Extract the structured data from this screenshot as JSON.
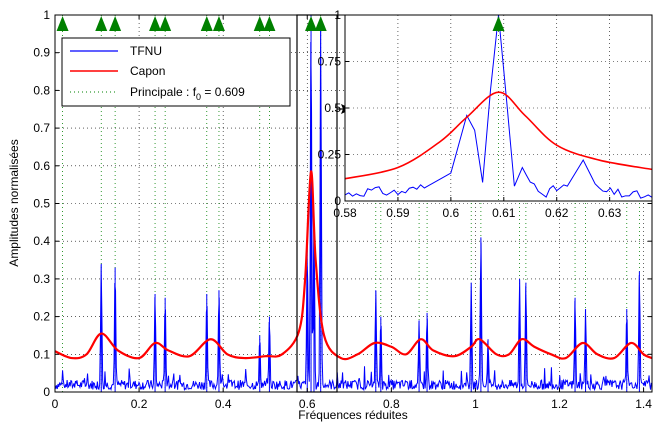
{
  "chart_data": [
    {
      "type": "line",
      "xlabel": "Fréquences réduites",
      "ylabel": "Amplitudes normalisées",
      "xlim": [
        0,
        1.42
      ],
      "ylim": [
        0,
        1
      ],
      "xticks": [
        "0",
        "0.2",
        "0.4",
        "0.6",
        "0.8",
        "1",
        "1.2",
        "1.4"
      ],
      "yticks": [
        "0",
        "0.1",
        "0.2",
        "0.3",
        "0.4",
        "0.5",
        "0.6",
        "0.7",
        "0.8",
        "0.9",
        "1"
      ],
      "grid": true,
      "legend_placement": "top-left",
      "colors": {
        "tfnu": "#0000ff",
        "capon": "#ff0000",
        "principale": "#008000"
      },
      "series": [
        {
          "name": "TFNU",
          "key": "tfnu",
          "peaks": [
            [
              0.609,
              1.0
            ],
            [
              0.632,
              0.98
            ],
            [
              0.6,
              0.39
            ],
            [
              0.616,
              0.46
            ],
            [
              0.11,
              0.34
            ],
            [
              0.143,
              0.33
            ],
            [
              0.238,
              0.26
            ],
            [
              0.262,
              0.25
            ],
            [
              0.361,
              0.26
            ],
            [
              0.39,
              0.27
            ],
            [
              0.487,
              0.15
            ],
            [
              0.51,
              0.2
            ],
            [
              0.763,
              0.27
            ],
            [
              0.775,
              0.2
            ],
            [
              0.866,
              0.19
            ],
            [
              0.885,
              0.21
            ],
            [
              0.99,
              0.29
            ],
            [
              1.013,
              0.41
            ],
            [
              1.03,
              0.14
            ],
            [
              1.105,
              0.3
            ],
            [
              1.12,
              0.29
            ],
            [
              1.237,
              0.25
            ],
            [
              1.262,
              0.22
            ],
            [
              1.36,
              0.22
            ],
            [
              1.39,
              0.32
            ]
          ],
          "baseline": 0.02
        },
        {
          "name": "Capon",
          "key": "capon",
          "points": [
            [
              0,
              0.108
            ],
            [
              0.04,
              0.09
            ],
            [
              0.075,
              0.1
            ],
            [
              0.11,
              0.155
            ],
            [
              0.15,
              0.11
            ],
            [
              0.2,
              0.09
            ],
            [
              0.238,
              0.13
            ],
            [
              0.27,
              0.11
            ],
            [
              0.32,
              0.095
            ],
            [
              0.37,
              0.14
            ],
            [
              0.41,
              0.1
            ],
            [
              0.45,
              0.09
            ],
            [
              0.5,
              0.095
            ],
            [
              0.54,
              0.1
            ],
            [
              0.58,
              0.16
            ],
            [
              0.595,
              0.3
            ],
            [
              0.609,
              0.585
            ],
            [
              0.62,
              0.35
            ],
            [
              0.64,
              0.15
            ],
            [
              0.68,
              0.09
            ],
            [
              0.72,
              0.1
            ],
            [
              0.76,
              0.13
            ],
            [
              0.8,
              0.12
            ],
            [
              0.835,
              0.1
            ],
            [
              0.87,
              0.14
            ],
            [
              0.9,
              0.11
            ],
            [
              0.95,
              0.095
            ],
            [
              0.99,
              0.12
            ],
            [
              1.01,
              0.14
            ],
            [
              1.05,
              0.1
            ],
            [
              1.08,
              0.1
            ],
            [
              1.11,
              0.14
            ],
            [
              1.14,
              0.12
            ],
            [
              1.18,
              0.1
            ],
            [
              1.215,
              0.09
            ],
            [
              1.255,
              0.13
            ],
            [
              1.29,
              0.1
            ],
            [
              1.33,
              0.09
            ],
            [
              1.37,
              0.13
            ],
            [
              1.4,
              0.1
            ],
            [
              1.42,
              0.09
            ]
          ]
        },
        {
          "name": "Principale : f0 = 0.609",
          "key": "principale",
          "markers": [
            0.018,
            0.11,
            0.143,
            0.238,
            0.262,
            0.361,
            0.39,
            0.487,
            0.51,
            0.609,
            0.632,
            0.763,
            0.775,
            0.866,
            0.885,
            0.99,
            1.013,
            1.105,
            1.12,
            1.237,
            1.262,
            1.36,
            1.39
          ]
        }
      ]
    },
    {
      "type": "line",
      "inset": true,
      "xlim": [
        0.58,
        0.638
      ],
      "ylim": [
        0,
        1
      ],
      "xticks": [
        "0.58",
        "0.59",
        "0.6",
        "0.61",
        "0.62",
        "0.63"
      ],
      "yticks": [
        "0",
        "0.25",
        "0.5",
        "0.75",
        "1"
      ],
      "tfnu_points": [
        [
          0.58,
          0.03
        ],
        [
          0.585,
          0.05
        ],
        [
          0.59,
          0.04
        ],
        [
          0.595,
          0.07
        ],
        [
          0.6,
          0.15
        ],
        [
          0.603,
          0.46
        ],
        [
          0.6045,
          0.38
        ],
        [
          0.606,
          0.1
        ],
        [
          0.6075,
          0.6
        ],
        [
          0.609,
          1.0
        ],
        [
          0.6105,
          0.55
        ],
        [
          0.612,
          0.08
        ],
        [
          0.6135,
          0.18
        ],
        [
          0.615,
          0.1
        ],
        [
          0.618,
          0.04
        ],
        [
          0.622,
          0.08
        ],
        [
          0.625,
          0.22
        ],
        [
          0.628,
          0.05
        ],
        [
          0.633,
          0.03
        ],
        [
          0.638,
          0.02
        ]
      ],
      "capon_points": [
        [
          0.58,
          0.12
        ],
        [
          0.59,
          0.18
        ],
        [
          0.598,
          0.32
        ],
        [
          0.603,
          0.45
        ],
        [
          0.609,
          0.585
        ],
        [
          0.614,
          0.46
        ],
        [
          0.62,
          0.3
        ],
        [
          0.628,
          0.22
        ],
        [
          0.638,
          0.17
        ]
      ]
    }
  ],
  "legend": {
    "tfnu": "TFNU",
    "capon": "Capon",
    "principale_prefix": "Principale : f",
    "principale_sub": "0",
    "principale_suffix": " = 0.609"
  }
}
